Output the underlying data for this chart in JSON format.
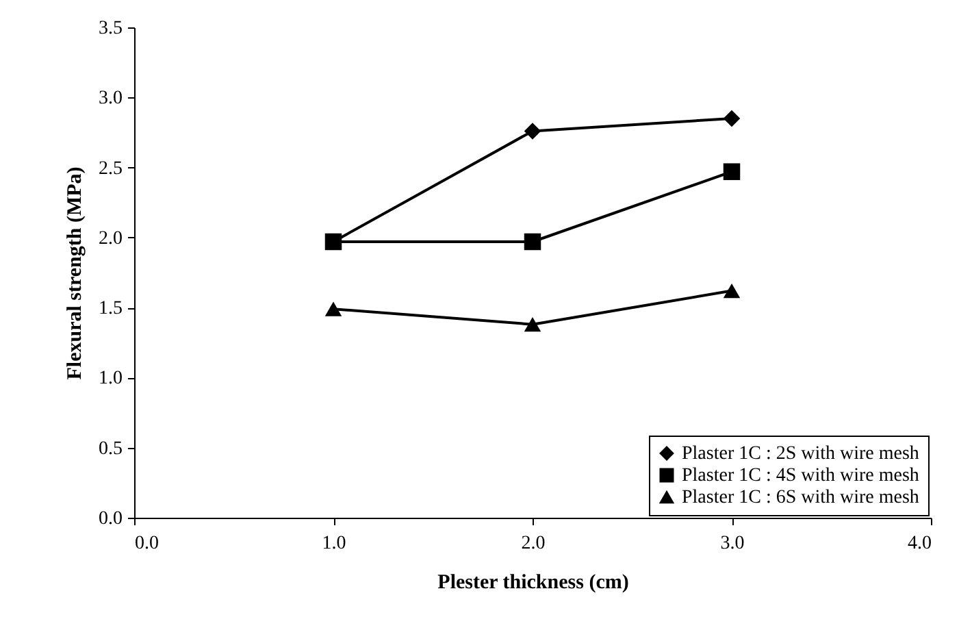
{
  "chart_data": {
    "type": "line",
    "xlabel": "Plester thickness (cm)",
    "ylabel": "Flexural strength (MPa)",
    "x": [
      1,
      2,
      3
    ],
    "series": [
      {
        "name": "Plaster 1C : 2S with wire mesh",
        "color": "#000000",
        "marker": "diamond",
        "values": [
          1.97,
          2.76,
          2.85
        ]
      },
      {
        "name": "Plaster 1C : 4S with wire mesh",
        "color": "#000000",
        "marker": "square",
        "values": [
          1.97,
          1.97,
          2.47
        ]
      },
      {
        "name": "Plaster 1C : 6S with wire mesh",
        "color": "#000000",
        "marker": "triangle",
        "values": [
          1.49,
          1.38,
          1.62
        ]
      }
    ],
    "xlim": [
      0,
      4
    ],
    "xticks": [
      {
        "value": 0,
        "label": "0.0"
      },
      {
        "value": 1,
        "label": "1.0"
      },
      {
        "value": 2,
        "label": "2.0"
      },
      {
        "value": 3,
        "label": "3.0"
      },
      {
        "value": 4,
        "label": "4.0"
      }
    ],
    "ylim": [
      0,
      3.5
    ],
    "yticks": [
      {
        "value": 0,
        "label": "0.0"
      },
      0.5,
      {
        "value": 1,
        "label": "1.0"
      },
      1.5,
      {
        "value": 2,
        "label": "2.0"
      },
      2.5,
      {
        "value": 3,
        "label": "3.0"
      },
      3.5
    ],
    "grid": false,
    "legend": "bottom right",
    "line_style": "solid"
  }
}
